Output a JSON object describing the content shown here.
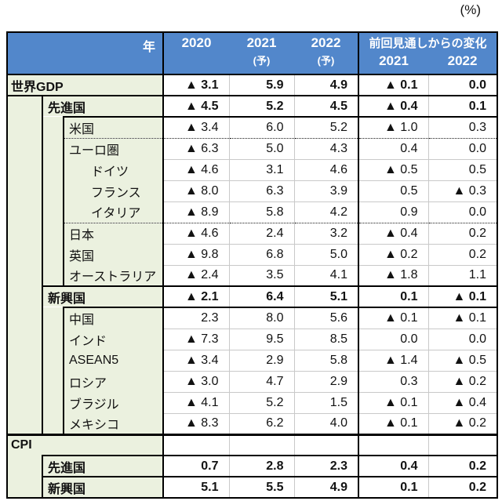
{
  "unit_label": "(%)",
  "colors": {
    "header_blue": "#5287CB",
    "label_green": "#EBF1DF",
    "border_black": "#000000",
    "grid_light_gray": "#C9C9C9"
  },
  "chart_data": {
    "type": "table",
    "unit": "(%)",
    "negative_marker": "▲",
    "header": {
      "year": "年",
      "y2020": "2020",
      "y2021": "2021",
      "y2022": "2022",
      "forecast": "(予)",
      "change_title": "前回見通しからの変化",
      "c2021": "2021",
      "c2022": "2022"
    },
    "columns": [
      "年",
      "2020",
      "2021 (予)",
      "2022 (予)",
      "前回見通しからの変化 2021",
      "前回見通しからの変化 2022"
    ],
    "rows": [
      {
        "label": "世界GDP",
        "indent": 0,
        "bold": true,
        "corner": false,
        "values": [
          "▲ 3.1",
          "5.9",
          "4.9",
          "▲ 0.1",
          "0.0"
        ],
        "sep": "full"
      },
      {
        "label": "先進国",
        "indent": 1,
        "bold": true,
        "corner": false,
        "values": [
          "▲ 4.5",
          "5.2",
          "4.5",
          "▲ 0.4",
          "0.1"
        ],
        "sep": "fromC"
      },
      {
        "label": "米国",
        "indent": 2,
        "bold": false,
        "corner": false,
        "values": [
          "▲ 3.4",
          "6.0",
          "5.2",
          "▲ 1.0",
          "0.3"
        ],
        "sep": "dotted"
      },
      {
        "label": "ユーロ圏",
        "indent": 2,
        "bold": false,
        "corner": false,
        "values": [
          "▲ 6.3",
          "5.0",
          "4.3",
          "0.4",
          "0.0"
        ],
        "sep": "light"
      },
      {
        "label": "ドイツ",
        "indent": 3,
        "bold": false,
        "corner": false,
        "values": [
          "▲ 4.6",
          "3.1",
          "4.6",
          "▲ 0.5",
          "0.5"
        ],
        "sep": "light"
      },
      {
        "label": "フランス",
        "indent": 3,
        "bold": false,
        "corner": false,
        "values": [
          "▲ 8.0",
          "6.3",
          "3.9",
          "0.5",
          "▲ 0.3"
        ],
        "sep": "light"
      },
      {
        "label": "イタリア",
        "indent": 3,
        "bold": false,
        "corner": false,
        "values": [
          "▲ 8.9",
          "5.8",
          "4.2",
          "0.9",
          "0.0"
        ],
        "sep": "dotted"
      },
      {
        "label": "日本",
        "indent": 2,
        "bold": false,
        "corner": false,
        "values": [
          "▲ 4.6",
          "2.4",
          "3.2",
          "▲ 0.4",
          "0.2"
        ],
        "sep": "light"
      },
      {
        "label": "英国",
        "indent": 2,
        "bold": false,
        "corner": false,
        "values": [
          "▲ 9.8",
          "6.8",
          "5.0",
          "▲ 0.2",
          "0.2"
        ],
        "sep": "light"
      },
      {
        "label": "オーストラリア",
        "indent": 2,
        "bold": false,
        "corner": false,
        "values": [
          "▲ 2.4",
          "3.5",
          "4.1",
          "▲ 1.8",
          "1.1"
        ],
        "sep": "fromB"
      },
      {
        "label": "新興国",
        "indent": 1,
        "bold": true,
        "corner": false,
        "values": [
          "▲ 2.1",
          "6.4",
          "5.1",
          "0.1",
          "▲ 0.1"
        ],
        "sep": "fromC"
      },
      {
        "label": "中国",
        "indent": 2,
        "bold": false,
        "corner": false,
        "values": [
          "2.3",
          "8.0",
          "5.6",
          "▲ 0.1",
          "▲ 0.1"
        ],
        "sep": "light"
      },
      {
        "label": "インド",
        "indent": 2,
        "bold": false,
        "corner": false,
        "values": [
          "▲ 7.3",
          "9.5",
          "8.5",
          "0.0",
          "0.0"
        ],
        "sep": "light"
      },
      {
        "label": "ASEAN5",
        "indent": 2,
        "bold": false,
        "corner": false,
        "values": [
          "▲ 3.4",
          "2.9",
          "5.8",
          "▲ 1.4",
          "▲ 0.5"
        ],
        "sep": "light"
      },
      {
        "label": "ロシア",
        "indent": 2,
        "bold": false,
        "corner": false,
        "values": [
          "▲ 3.0",
          "4.7",
          "2.9",
          "0.3",
          "▲ 0.2"
        ],
        "sep": "light"
      },
      {
        "label": "ブラジル",
        "indent": 2,
        "bold": false,
        "corner": false,
        "values": [
          "▲ 4.1",
          "5.2",
          "1.5",
          "▲ 0.1",
          "▲ 0.4"
        ],
        "sep": "light"
      },
      {
        "label": "メキシコ",
        "indent": 2,
        "bold": false,
        "corner": false,
        "values": [
          "▲ 8.3",
          "6.2",
          "4.0",
          "▲ 0.1",
          "▲ 0.2"
        ],
        "sep": "thick"
      },
      {
        "label": "CPI",
        "indent": 0,
        "bold": true,
        "corner": true,
        "values": [
          "",
          "",
          "",
          "",
          ""
        ],
        "sep": "fromB"
      },
      {
        "label": "先進国",
        "indent": 1,
        "bold": true,
        "corner": false,
        "values": [
          "0.7",
          "2.8",
          "2.3",
          "0.4",
          "0.2"
        ],
        "sep": "fromB"
      },
      {
        "label": "新興国",
        "indent": 1,
        "bold": true,
        "corner": false,
        "values": [
          "5.1",
          "5.5",
          "4.9",
          "0.1",
          "0.2"
        ],
        "sep": "none"
      }
    ]
  }
}
